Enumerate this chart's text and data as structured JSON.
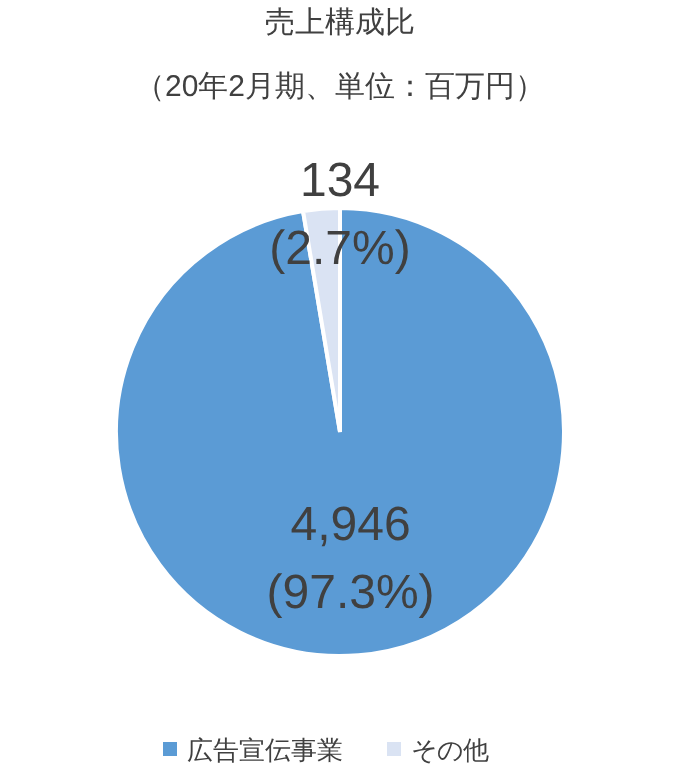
{
  "chart_data": {
    "type": "pie",
    "title": "売上構成比",
    "subtitle": "（20年2月期、単位：百万円）",
    "categories": [
      "広告宣伝事業",
      "その他"
    ],
    "values": [
      4946,
      134
    ],
    "colors": [
      "#5b9bd5",
      "#dae3f3"
    ],
    "value_labels": [
      "4,946\n(97.3%)",
      "134\n(2.7%)"
    ],
    "legend": "bottom"
  }
}
